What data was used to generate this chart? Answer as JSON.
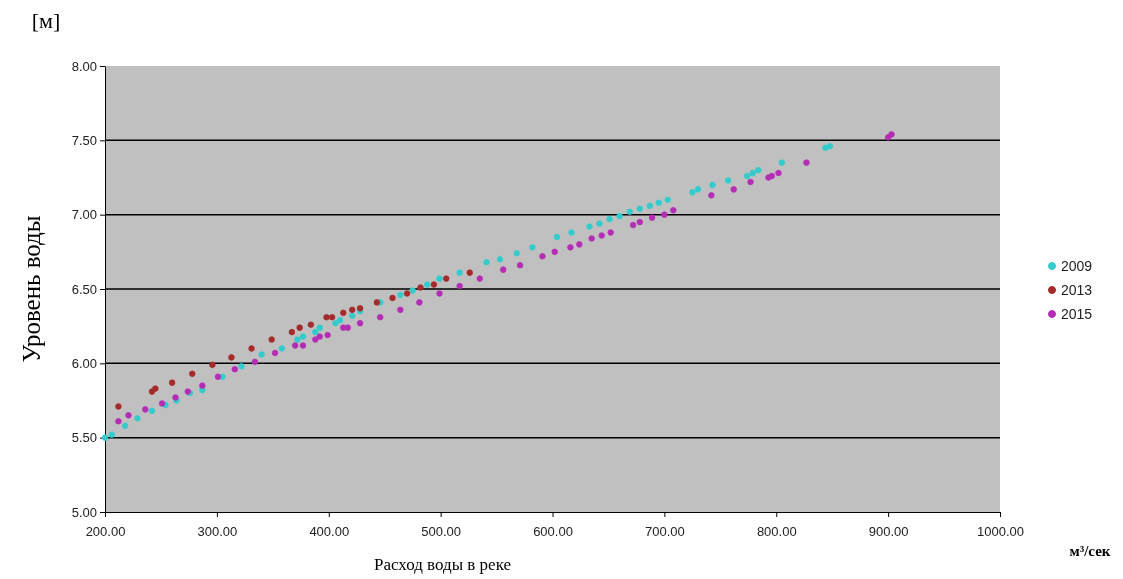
{
  "chart_data": {
    "type": "scatter",
    "xlabel": "Расход воды в реке",
    "ylabel": "Уровень воды",
    "annotations": [
      "[м]",
      "м³/сек"
    ],
    "xlim": [
      200,
      1000
    ],
    "ylim": [
      5,
      8
    ],
    "xticks": [
      {
        "value": 200,
        "label": "200.00"
      },
      {
        "value": 300,
        "label": "300.00"
      },
      {
        "value": 400,
        "label": "400.00"
      },
      {
        "value": 500,
        "label": "500.00"
      },
      {
        "value": 600,
        "label": "600.00"
      },
      {
        "value": 700,
        "label": "700.00"
      },
      {
        "value": 800,
        "label": "800.00"
      },
      {
        "value": 900,
        "label": "900.00"
      },
      {
        "value": 1000,
        "label": "1000.00"
      }
    ],
    "yticks": [
      {
        "value": 5,
        "label": "5.00"
      },
      {
        "value": 5.5,
        "label": "5.50"
      },
      {
        "value": 6,
        "label": "6.00"
      },
      {
        "value": 6.5,
        "label": "6.50"
      },
      {
        "value": 7,
        "label": "7.00"
      },
      {
        "value": 7.5,
        "label": "7.50"
      },
      {
        "value": 8,
        "label": "8.00"
      }
    ],
    "grid": "y",
    "legend": "right",
    "marker": "circle",
    "series": [
      {
        "name": "2009",
        "color": "#33cccc",
        "x": [
          200,
          206,
          218,
          229,
          242,
          254,
          264,
          276,
          287,
          305,
          322,
          340,
          358,
          372,
          377,
          388,
          392,
          406,
          410,
          421,
          428,
          446,
          464,
          475,
          488,
          499,
          517,
          541,
          553,
          568,
          582,
          604,
          617,
          633,
          642,
          651,
          660,
          669,
          678,
          687,
          695,
          703,
          725,
          730,
          743,
          757,
          774,
          779,
          784,
          805,
          844,
          848
        ],
        "values": [
          5.5,
          5.52,
          5.58,
          5.63,
          5.68,
          5.72,
          5.75,
          5.8,
          5.82,
          5.91,
          5.98,
          6.06,
          6.1,
          6.16,
          6.18,
          6.21,
          6.24,
          6.27,
          6.29,
          6.32,
          6.35,
          6.41,
          6.46,
          6.49,
          6.53,
          6.57,
          6.61,
          6.68,
          6.7,
          6.74,
          6.78,
          6.85,
          6.88,
          6.92,
          6.94,
          6.97,
          6.99,
          7.02,
          7.04,
          7.06,
          7.08,
          7.1,
          7.15,
          7.17,
          7.2,
          7.23,
          7.26,
          7.28,
          7.3,
          7.35,
          7.45,
          7.46
        ]
      },
      {
        "name": "2013",
        "color": "#a52a2a",
        "x": [
          212,
          242,
          245,
          260,
          278,
          296,
          313,
          331,
          349,
          367,
          374,
          384,
          398,
          403,
          413,
          421,
          428,
          443,
          457,
          470,
          482,
          494,
          505,
          526
        ],
        "values": [
          5.71,
          5.81,
          5.83,
          5.87,
          5.93,
          5.99,
          6.04,
          6.1,
          6.16,
          6.21,
          6.24,
          6.26,
          6.31,
          6.31,
          6.34,
          6.36,
          6.37,
          6.41,
          6.44,
          6.47,
          6.51,
          6.53,
          6.57,
          6.61
        ]
      },
      {
        "name": "2015",
        "color": "#b42db4",
        "x": [
          212,
          221,
          236,
          251,
          263,
          274,
          287,
          301,
          316,
          334,
          352,
          370,
          377,
          388,
          392,
          399,
          413,
          417,
          428,
          446,
          464,
          481,
          499,
          517,
          535,
          556,
          571,
          591,
          602,
          616,
          624,
          635,
          644,
          652,
          672,
          678,
          689,
          700,
          708,
          742,
          762,
          777,
          793,
          796,
          802,
          827,
          900,
          903
        ],
        "values": [
          5.61,
          5.65,
          5.69,
          5.73,
          5.77,
          5.81,
          5.85,
          5.91,
          5.96,
          6.01,
          6.07,
          6.12,
          6.12,
          6.16,
          6.18,
          6.19,
          6.24,
          6.24,
          6.27,
          6.31,
          6.36,
          6.41,
          6.47,
          6.52,
          6.57,
          6.63,
          6.66,
          6.72,
          6.75,
          6.78,
          6.8,
          6.84,
          6.86,
          6.88,
          6.93,
          6.95,
          6.98,
          7.0,
          7.03,
          7.13,
          7.17,
          7.22,
          7.25,
          7.26,
          7.28,
          7.35,
          7.52,
          7.54
        ]
      }
    ]
  }
}
